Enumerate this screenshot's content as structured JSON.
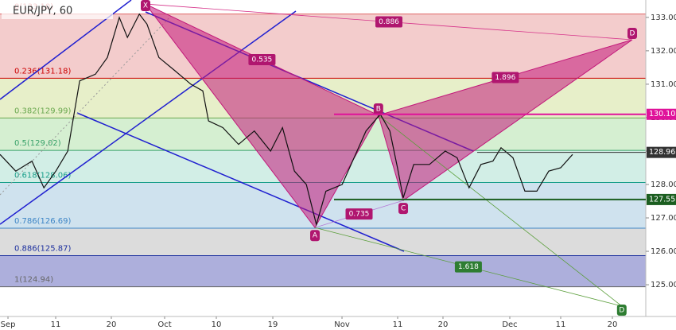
{
  "chart_data": {
    "type": "line",
    "title": "EUR/JPY, 60",
    "x": [
      0,
      3.3,
      6.7,
      9.2,
      11.7,
      14.2,
      16.7,
      20,
      22.5,
      25,
      26.7,
      29.2,
      30.8,
      33.3,
      36.7,
      40,
      42.5,
      43.7,
      46.7,
      50,
      53.3,
      56.7,
      59.2,
      61.7,
      64.2,
      66.3,
      68.3,
      71.7,
      74.2,
      76.7,
      79.7,
      81.7,
      83.3,
      84.5,
      86.7,
      90,
      93.3,
      95.8,
      98.3,
      100.8,
      103.3,
      105,
      107.5,
      110,
      112.5,
      115,
      117.5,
      120
    ],
    "values": [
      128.9,
      128.4,
      128.7,
      127.9,
      128.4,
      129.0,
      131.1,
      131.3,
      131.8,
      133.0,
      132.4,
      133.1,
      132.8,
      131.8,
      131.4,
      131.0,
      130.8,
      129.9,
      129.7,
      129.2,
      129.6,
      129.0,
      129.7,
      128.4,
      128.0,
      126.8,
      127.8,
      128.0,
      128.8,
      129.6,
      130.1,
      129.6,
      128.5,
      127.6,
      128.6,
      128.6,
      129.0,
      128.8,
      127.9,
      128.6,
      128.7,
      129.1,
      128.8,
      127.8,
      127.8,
      128.4,
      128.5,
      128.9
    ],
    "color": "#111111",
    "xlim": [
      0,
      135.33
    ],
    "ylim": [
      124.05,
      133.52
    ],
    "xticks": [
      {
        "value": 1.67,
        "label": "Sep"
      },
      {
        "value": 11.67,
        "label": "11"
      },
      {
        "value": 23.33,
        "label": "20"
      },
      {
        "value": 34.5,
        "label": "Oct"
      },
      {
        "value": 45.33,
        "label": "10"
      },
      {
        "value": 57.17,
        "label": "19"
      },
      {
        "value": 71.67,
        "label": "Nov"
      },
      {
        "value": 83.33,
        "label": "11"
      },
      {
        "value": 92.83,
        "label": "20"
      },
      {
        "value": 106.83,
        "label": "Dec"
      },
      {
        "value": 117.5,
        "label": "11"
      },
      {
        "value": 128.33,
        "label": "20"
      }
    ],
    "yticks": [
      {
        "value": 125,
        "label": "125.00"
      },
      {
        "value": 126,
        "label": "126.00"
      },
      {
        "value": 127,
        "label": "127.00"
      },
      {
        "value": 128,
        "label": "128.00"
      },
      {
        "value": 129,
        "label": "129.00"
      },
      {
        "value": 130,
        "label": "130.00"
      },
      {
        "value": 131,
        "label": "131.00"
      },
      {
        "value": 132,
        "label": "132.00"
      },
      {
        "value": 133,
        "label": "133.00"
      }
    ],
    "fib_levels": [
      {
        "label": "0(133.10)",
        "value": 133.1,
        "color": "#e06666",
        "fill": "#f3cccc"
      },
      {
        "label": "0.236(131.18)",
        "value": 131.18,
        "color": "#cc0000",
        "fill": "#e7efc9"
      },
      {
        "label": "0.382(129.99)",
        "value": 129.99,
        "color": "#6aa84f",
        "fill": "#d5efd1"
      },
      {
        "label": "0.5(129.02)",
        "value": 129.02,
        "color": "#38a169",
        "fill": "#d2eee6"
      },
      {
        "label": "0.618(128.06)",
        "value": 128.06,
        "color": "#1a9e8a",
        "fill": "#cfe2ee"
      },
      {
        "label": "0.786(126.69)",
        "value": 126.69,
        "color": "#3d85c6",
        "fill": "#dcdcdc"
      },
      {
        "label": "0.886(125.87)",
        "value": 125.87,
        "color": "#1c2f9e",
        "fill": "#adafdc"
      },
      {
        "label": "1(124.94)",
        "value": 124.94,
        "color": "#666666",
        "fill": "#ffffff"
      }
    ],
    "pattern_points": [
      {
        "label": "X",
        "x": 30.5,
        "value": 133.4,
        "color": "#b0166f"
      },
      {
        "label": "A",
        "x": 66,
        "value": 126.71,
        "color": "#b0166f"
      },
      {
        "label": "B",
        "x": 79.3,
        "value": 130.07,
        "color": "#b0166f"
      },
      {
        "label": "C",
        "x": 84.5,
        "value": 127.52,
        "color": "#b0166f"
      },
      {
        "label": "D",
        "x": 132.5,
        "value": 132.33,
        "color": "#b0166f"
      },
      {
        "label": "D",
        "x": 130.3,
        "value": 124.36,
        "color": "#2e7d32"
      }
    ],
    "ratios": [
      {
        "value": 0.886,
        "color": "#b0166f"
      },
      {
        "value": 0.535,
        "color": "#b0166f"
      },
      {
        "value": 1.896,
        "color": "#b0166f"
      },
      {
        "value": 0.735,
        "color": "#b0166f"
      },
      {
        "value": 1.618,
        "color": "#2e7d32"
      }
    ],
    "price_markers": [
      {
        "value": 130.1,
        "label": "130.10",
        "color": "#e0129a"
      },
      {
        "value": 128.96,
        "label": "128.96",
        "color": "#333333"
      },
      {
        "value": 127.55,
        "label": "127.55",
        "color": "#1b5e20"
      }
    ]
  }
}
